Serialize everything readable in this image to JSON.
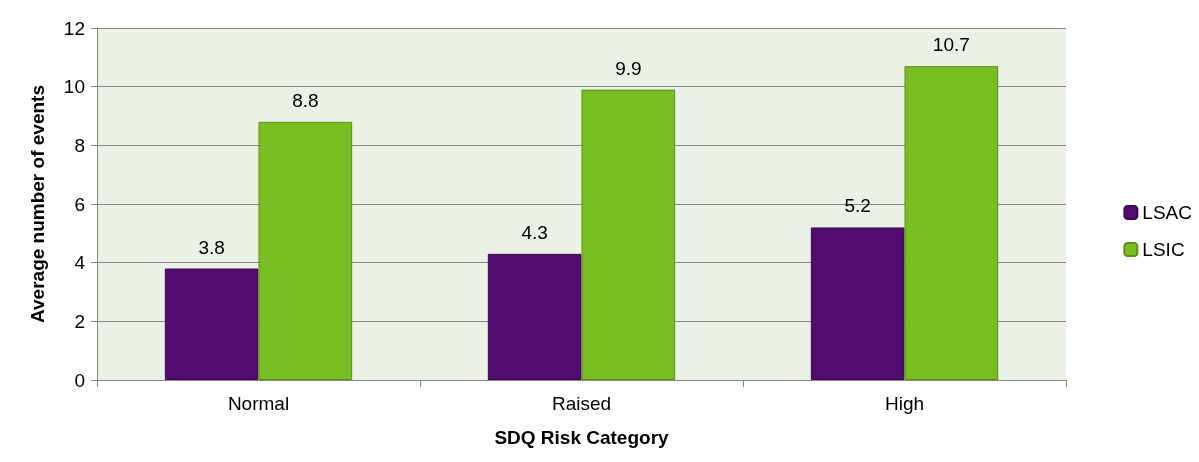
{
  "chart_data": {
    "type": "bar",
    "xlabel": "SDQ Risk Category",
    "ylabel": "Average number of events",
    "categories": [
      "Normal",
      "Raised",
      "High"
    ],
    "series": [
      {
        "name": "LSAC",
        "color": "#520c6f",
        "values": [
          3.8,
          4.3,
          5.2
        ]
      },
      {
        "name": "LSIC",
        "color": "#78be20",
        "values": [
          8.8,
          9.9,
          10.7
        ]
      }
    ],
    "ylim": [
      0,
      12
    ],
    "yticks": [
      0,
      2,
      4,
      6,
      8,
      10,
      12
    ],
    "grid": "y",
    "legend": "right",
    "data_labels": true
  }
}
